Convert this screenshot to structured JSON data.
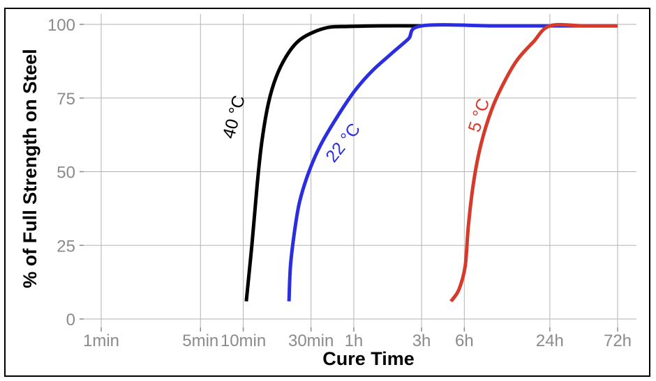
{
  "chart_data": {
    "type": "line",
    "xlabel": "Cure Time",
    "ylabel": "% of Full Strength on Steel",
    "x_scale": "log",
    "x_unit": "minutes",
    "xlim": [
      0.75,
      5800
    ],
    "ylim": [
      0,
      100
    ],
    "x_ticks": [
      {
        "label": "1min",
        "minutes": 1
      },
      {
        "label": "5min",
        "minutes": 5
      },
      {
        "label": "10min",
        "minutes": 10
      },
      {
        "label": "30min",
        "minutes": 30
      },
      {
        "label": "1h",
        "minutes": 60
      },
      {
        "label": "3h",
        "minutes": 180
      },
      {
        "label": "6h",
        "minutes": 360
      },
      {
        "label": "24h",
        "minutes": 1440
      },
      {
        "label": "72h",
        "minutes": 4320
      }
    ],
    "y_ticks": [
      {
        "label": "0",
        "value": 0
      },
      {
        "label": "25",
        "value": 25
      },
      {
        "label": "50",
        "value": 50
      },
      {
        "label": "75",
        "value": 75
      },
      {
        "label": "100",
        "value": 100
      }
    ],
    "grid": true,
    "series": [
      {
        "name": "40 °C",
        "color": "#000000",
        "points": [
          [
            10.5,
            6
          ],
          [
            11.5,
            25
          ],
          [
            12.5,
            45
          ],
          [
            13.5,
            60
          ],
          [
            15,
            73
          ],
          [
            17,
            82
          ],
          [
            20,
            89
          ],
          [
            24,
            94
          ],
          [
            30,
            97
          ],
          [
            40,
            99
          ],
          [
            55,
            99.3
          ],
          [
            90,
            99.5
          ],
          [
            180,
            99.5
          ]
        ]
      },
      {
        "name": "22 °C",
        "color": "#2a2ee0",
        "points": [
          [
            21,
            6
          ],
          [
            21.5,
            18
          ],
          [
            23,
            30
          ],
          [
            25,
            40
          ],
          [
            29,
            50
          ],
          [
            35,
            59
          ],
          [
            45,
            68
          ],
          [
            60,
            77
          ],
          [
            80,
            84
          ],
          [
            110,
            90
          ],
          [
            145,
            95
          ],
          [
            180,
            99.5
          ],
          [
            600,
            99.5
          ],
          [
            1440,
            99.5
          ],
          [
            4320,
            99.5
          ]
        ]
      },
      {
        "name": "5 °C",
        "color": "#d63a2a",
        "points": [
          [
            290,
            6
          ],
          [
            330,
            10
          ],
          [
            365,
            18
          ],
          [
            385,
            32
          ],
          [
            420,
            47
          ],
          [
            470,
            59
          ],
          [
            560,
            71
          ],
          [
            680,
            80
          ],
          [
            850,
            88
          ],
          [
            1100,
            94
          ],
          [
            1440,
            99.5
          ],
          [
            2500,
            99.5
          ],
          [
            4320,
            99.5
          ]
        ]
      }
    ]
  }
}
